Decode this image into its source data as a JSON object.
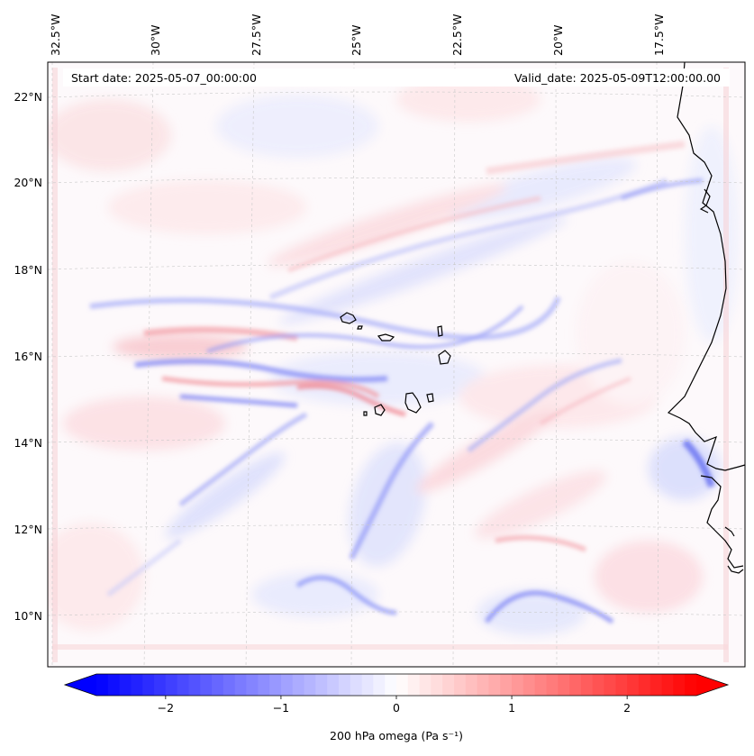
{
  "map": {
    "start_date": "Start date: 2025-05-07_00:00:00",
    "valid_date": "Valid_date: 2025-05-09T12:00:00.00",
    "lon_labels": [
      "32.5°W",
      "30°W",
      "27.5°W",
      "25°W",
      "22.5°W",
      "20°W",
      "17.5°W"
    ],
    "lat_labels": [
      "22°N",
      "20°N",
      "18°N",
      "16°N",
      "14°N",
      "12°N",
      "10°N"
    ],
    "lat_values": [
      22,
      20,
      18,
      16,
      14,
      12,
      10
    ],
    "lon_values": [
      -32.5,
      -30,
      -27.5,
      -25,
      -22.5,
      -20,
      -17.5
    ],
    "field": "200 hPa omega",
    "colormap": "bwr"
  },
  "colorbar": {
    "label": "200 hPa omega (Pa s⁻¹)",
    "min": -2.6,
    "max": 2.6,
    "ticks": [
      -2,
      -1,
      0,
      1,
      2
    ],
    "tick_labels": [
      "−2",
      "−1",
      "0",
      "1",
      "2"
    ],
    "extend": "both",
    "colors": {
      "negative": "#0000ff",
      "zero": "#ffffff",
      "positive": "#ff0000"
    }
  }
}
